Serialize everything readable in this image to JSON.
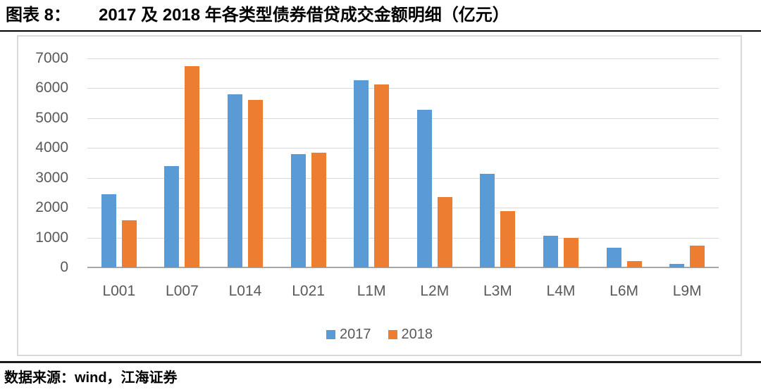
{
  "header": {
    "label": "图表 8：",
    "title": "2017 及 2018 年各类型债券借贷成交金额明细（亿元）"
  },
  "chart_data": {
    "type": "bar",
    "title": "2017 及 2018 年各类型债券借贷成交金额明细（亿元）",
    "categories": [
      "L001",
      "L007",
      "L014",
      "L021",
      "L1M",
      "L2M",
      "L3M",
      "L4M",
      "L6M",
      "L9M"
    ],
    "series": [
      {
        "name": "2017",
        "color": "#5B9BD5",
        "values": [
          2440,
          3400,
          5800,
          3790,
          6280,
          5290,
          3140,
          1050,
          650,
          120
        ]
      },
      {
        "name": "2018",
        "color": "#ED7D31",
        "values": [
          1570,
          6740,
          5600,
          3850,
          6130,
          2350,
          1890,
          980,
          220,
          730
        ]
      }
    ],
    "xlabel": "",
    "ylabel": "",
    "ylim": [
      0,
      7000
    ],
    "ytick_step": 1000,
    "yticks": [
      "0",
      "1000",
      "2000",
      "3000",
      "4000",
      "5000",
      "6000",
      "7000"
    ],
    "grid": true,
    "legend_position": "bottom"
  },
  "footer": {
    "source": "数据来源：wind，江海证券"
  },
  "colors": {
    "grid": "#d9d9d9",
    "axis": "#a6a6a6",
    "tick_text": "#595959",
    "panel_border": "#d9d9d9",
    "caption_text": "#000000",
    "rule": "#000000"
  }
}
